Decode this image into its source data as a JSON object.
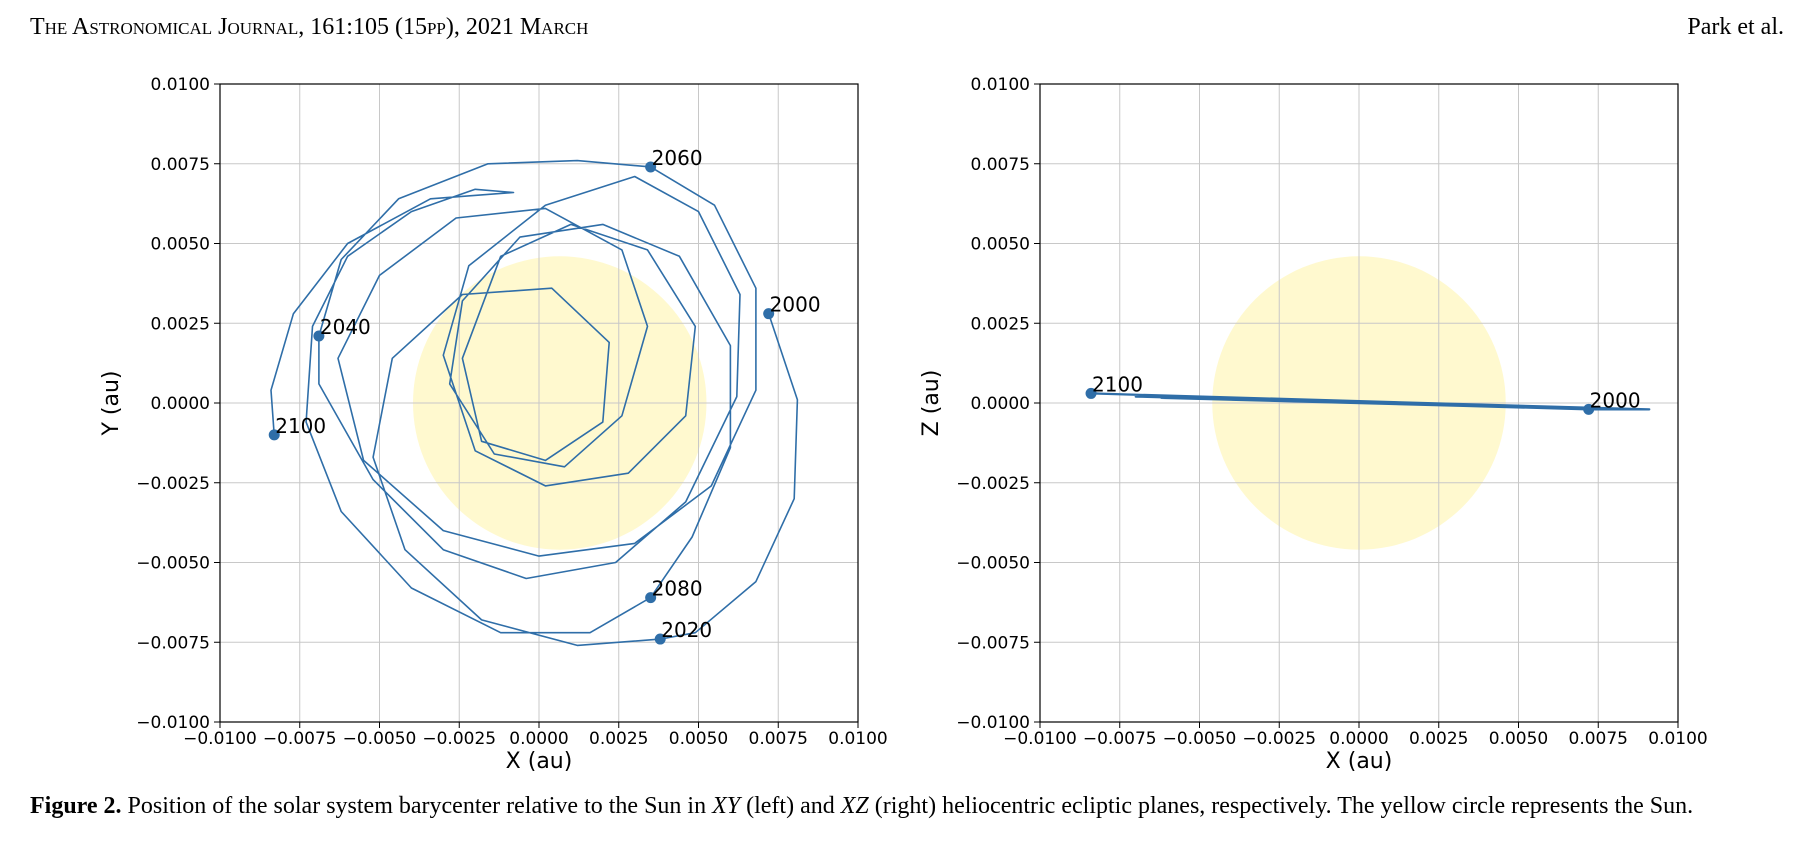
{
  "header": {
    "journal": "The Astronomical Journal, 161:105 (15pp), 2021 March",
    "authors": "Park et al."
  },
  "caption": {
    "label": "Figure 2.",
    "text_1": " Position of the solar system barycenter relative to the Sun in ",
    "xy": "XY",
    "text_2": " (left) and ",
    "xz": "XZ",
    "text_3": " (right) heliocentric ecliptic planes, respectively. The yellow circle represents the Sun."
  },
  "colors": {
    "orbit": "#2f6ea8",
    "sun": "#fff9cf",
    "grid": "#c8c8c8"
  },
  "chart_data": [
    {
      "type": "line",
      "xlabel": "X (au)",
      "ylabel": "Y (au)",
      "xlim": [
        -0.01,
        0.01
      ],
      "ylim": [
        -0.01,
        0.01
      ],
      "grid": true,
      "ticks": [
        "−0.0100",
        "−0.0075",
        "−0.0050",
        "−0.0025",
        "0.0000",
        "0.0025",
        "0.0050",
        "0.0075",
        "0.0100"
      ],
      "tick_values": [
        -0.01,
        -0.0075,
        -0.005,
        -0.0025,
        0,
        0.0025,
        0.005,
        0.0075,
        0.01
      ],
      "sun": {
        "x": 0.00065,
        "y": 0.0,
        "r": 0.0046
      },
      "markers": [
        {
          "label": "2000",
          "x": 0.0072,
          "y": 0.0028
        },
        {
          "label": "2020",
          "x": 0.0038,
          "y": -0.0074
        },
        {
          "label": "2040",
          "x": -0.0069,
          "y": 0.0021
        },
        {
          "label": "2060",
          "x": 0.0035,
          "y": 0.0074
        },
        {
          "label": "2080",
          "x": 0.0035,
          "y": -0.0061
        },
        {
          "label": "2100",
          "x": -0.0083,
          "y": -0.001
        }
      ],
      "path": [
        [
          0.0072,
          0.0028
        ],
        [
          0.0081,
          0.0001
        ],
        [
          0.008,
          -0.003
        ],
        [
          0.0068,
          -0.0056
        ],
        [
          0.0049,
          -0.0072
        ],
        [
          0.0038,
          -0.0074
        ],
        [
          0.0012,
          -0.0076
        ],
        [
          -0.0018,
          -0.0068
        ],
        [
          -0.0042,
          -0.0046
        ],
        [
          -0.0052,
          -0.0017
        ],
        [
          -0.0046,
          0.0014
        ],
        [
          -0.0024,
          0.0034
        ],
        [
          0.0004,
          0.0036
        ],
        [
          0.0022,
          0.0019
        ],
        [
          0.002,
          -0.0006
        ],
        [
          0.0002,
          -0.0018
        ],
        [
          -0.0018,
          -0.0012
        ],
        [
          -0.0024,
          0.0014
        ],
        [
          -0.0012,
          0.0046
        ],
        [
          0.001,
          0.0056
        ],
        [
          0.0034,
          0.0048
        ],
        [
          0.0049,
          0.0024
        ],
        [
          0.0046,
          -0.0004
        ],
        [
          0.0028,
          -0.0022
        ],
        [
          0.0002,
          -0.0026
        ],
        [
          -0.002,
          -0.0015
        ],
        [
          -0.003,
          0.0015
        ],
        [
          -0.0022,
          0.0043
        ],
        [
          0.0002,
          0.0062
        ],
        [
          0.003,
          0.0071
        ],
        [
          0.005,
          0.006
        ],
        [
          0.0063,
          0.0034
        ],
        [
          0.0062,
          0.0002
        ],
        [
          0.0046,
          -0.0031
        ],
        [
          0.0024,
          -0.005
        ],
        [
          -0.0004,
          -0.0055
        ],
        [
          -0.003,
          -0.0046
        ],
        [
          -0.0052,
          -0.0024
        ],
        [
          -0.0069,
          0.0006
        ],
        [
          -0.0069,
          0.0021
        ],
        [
          -0.0062,
          0.0045
        ],
        [
          -0.0044,
          0.0064
        ],
        [
          -0.0016,
          0.0075
        ],
        [
          0.0012,
          0.0076
        ],
        [
          0.0035,
          0.0074
        ],
        [
          0.0055,
          0.0062
        ],
        [
          0.0068,
          0.0036
        ],
        [
          0.0068,
          0.0004
        ],
        [
          0.0054,
          -0.0026
        ],
        [
          0.003,
          -0.0044
        ],
        [
          0.0,
          -0.0048
        ],
        [
          -0.003,
          -0.004
        ],
        [
          -0.0055,
          -0.0018
        ],
        [
          -0.0063,
          0.0014
        ],
        [
          -0.005,
          0.004
        ],
        [
          -0.0026,
          0.0058
        ],
        [
          0.0002,
          0.0061
        ],
        [
          0.0026,
          0.0048
        ],
        [
          0.0034,
          0.0024
        ],
        [
          0.0026,
          -0.0004
        ],
        [
          0.0008,
          -0.002
        ],
        [
          -0.0014,
          -0.0016
        ],
        [
          -0.0028,
          0.0006
        ],
        [
          -0.0024,
          0.0032
        ],
        [
          -0.0006,
          0.0052
        ],
        [
          0.002,
          0.0056
        ],
        [
          0.0044,
          0.0046
        ],
        [
          0.006,
          0.0018
        ],
        [
          0.006,
          -0.0014
        ],
        [
          0.0048,
          -0.0042
        ],
        [
          0.0035,
          -0.0061
        ],
        [
          0.0016,
          -0.0072
        ],
        [
          -0.0012,
          -0.0072
        ],
        [
          -0.004,
          -0.0058
        ],
        [
          -0.0062,
          -0.0034
        ],
        [
          -0.0073,
          -0.0006
        ],
        [
          -0.0071,
          0.0024
        ],
        [
          -0.006,
          0.0046
        ],
        [
          -0.004,
          0.006
        ],
        [
          -0.002,
          0.0067
        ],
        [
          -0.0008,
          0.0066
        ],
        [
          -0.0034,
          0.0064
        ],
        [
          -0.006,
          0.005
        ],
        [
          -0.0077,
          0.0028
        ],
        [
          -0.0084,
          0.0004
        ],
        [
          -0.0083,
          -0.001
        ]
      ]
    },
    {
      "type": "line",
      "xlabel": "X (au)",
      "ylabel": "Z (au)",
      "xlim": [
        -0.01,
        0.01
      ],
      "ylim": [
        -0.01,
        0.01
      ],
      "grid": true,
      "ticks": [
        "−0.0100",
        "−0.0075",
        "−0.0050",
        "−0.0025",
        "0.0000",
        "0.0025",
        "0.0050",
        "0.0075",
        "0.0100"
      ],
      "tick_values": [
        -0.01,
        -0.0075,
        -0.005,
        -0.0025,
        0,
        0.0025,
        0.005,
        0.0075,
        0.01
      ],
      "sun": {
        "x": 0.0,
        "y": 0.0,
        "r": 0.0046
      },
      "markers": [
        {
          "label": "2100",
          "x": -0.0084,
          "y": 0.0003
        },
        {
          "label": "2000",
          "x": 0.0072,
          "y": -0.0002
        }
      ],
      "path": [
        [
          -0.0084,
          0.0003
        ],
        [
          0.0091,
          -0.0002
        ],
        [
          0.0072,
          -0.0002
        ],
        [
          -0.007,
          0.0002
        ],
        [
          0.0066,
          -0.00018
        ],
        [
          -0.0062,
          0.00016
        ],
        [
          0.006,
          -0.00014
        ],
        [
          -0.005,
          0.00014
        ],
        [
          0.005,
          -0.00012
        ],
        [
          -0.004,
          0.0001
        ],
        [
          0.0045,
          -0.0001
        ],
        [
          -0.003,
          8e-05
        ],
        [
          0.004,
          -8e-05
        ],
        [
          -0.0084,
          0.0003
        ]
      ]
    }
  ]
}
